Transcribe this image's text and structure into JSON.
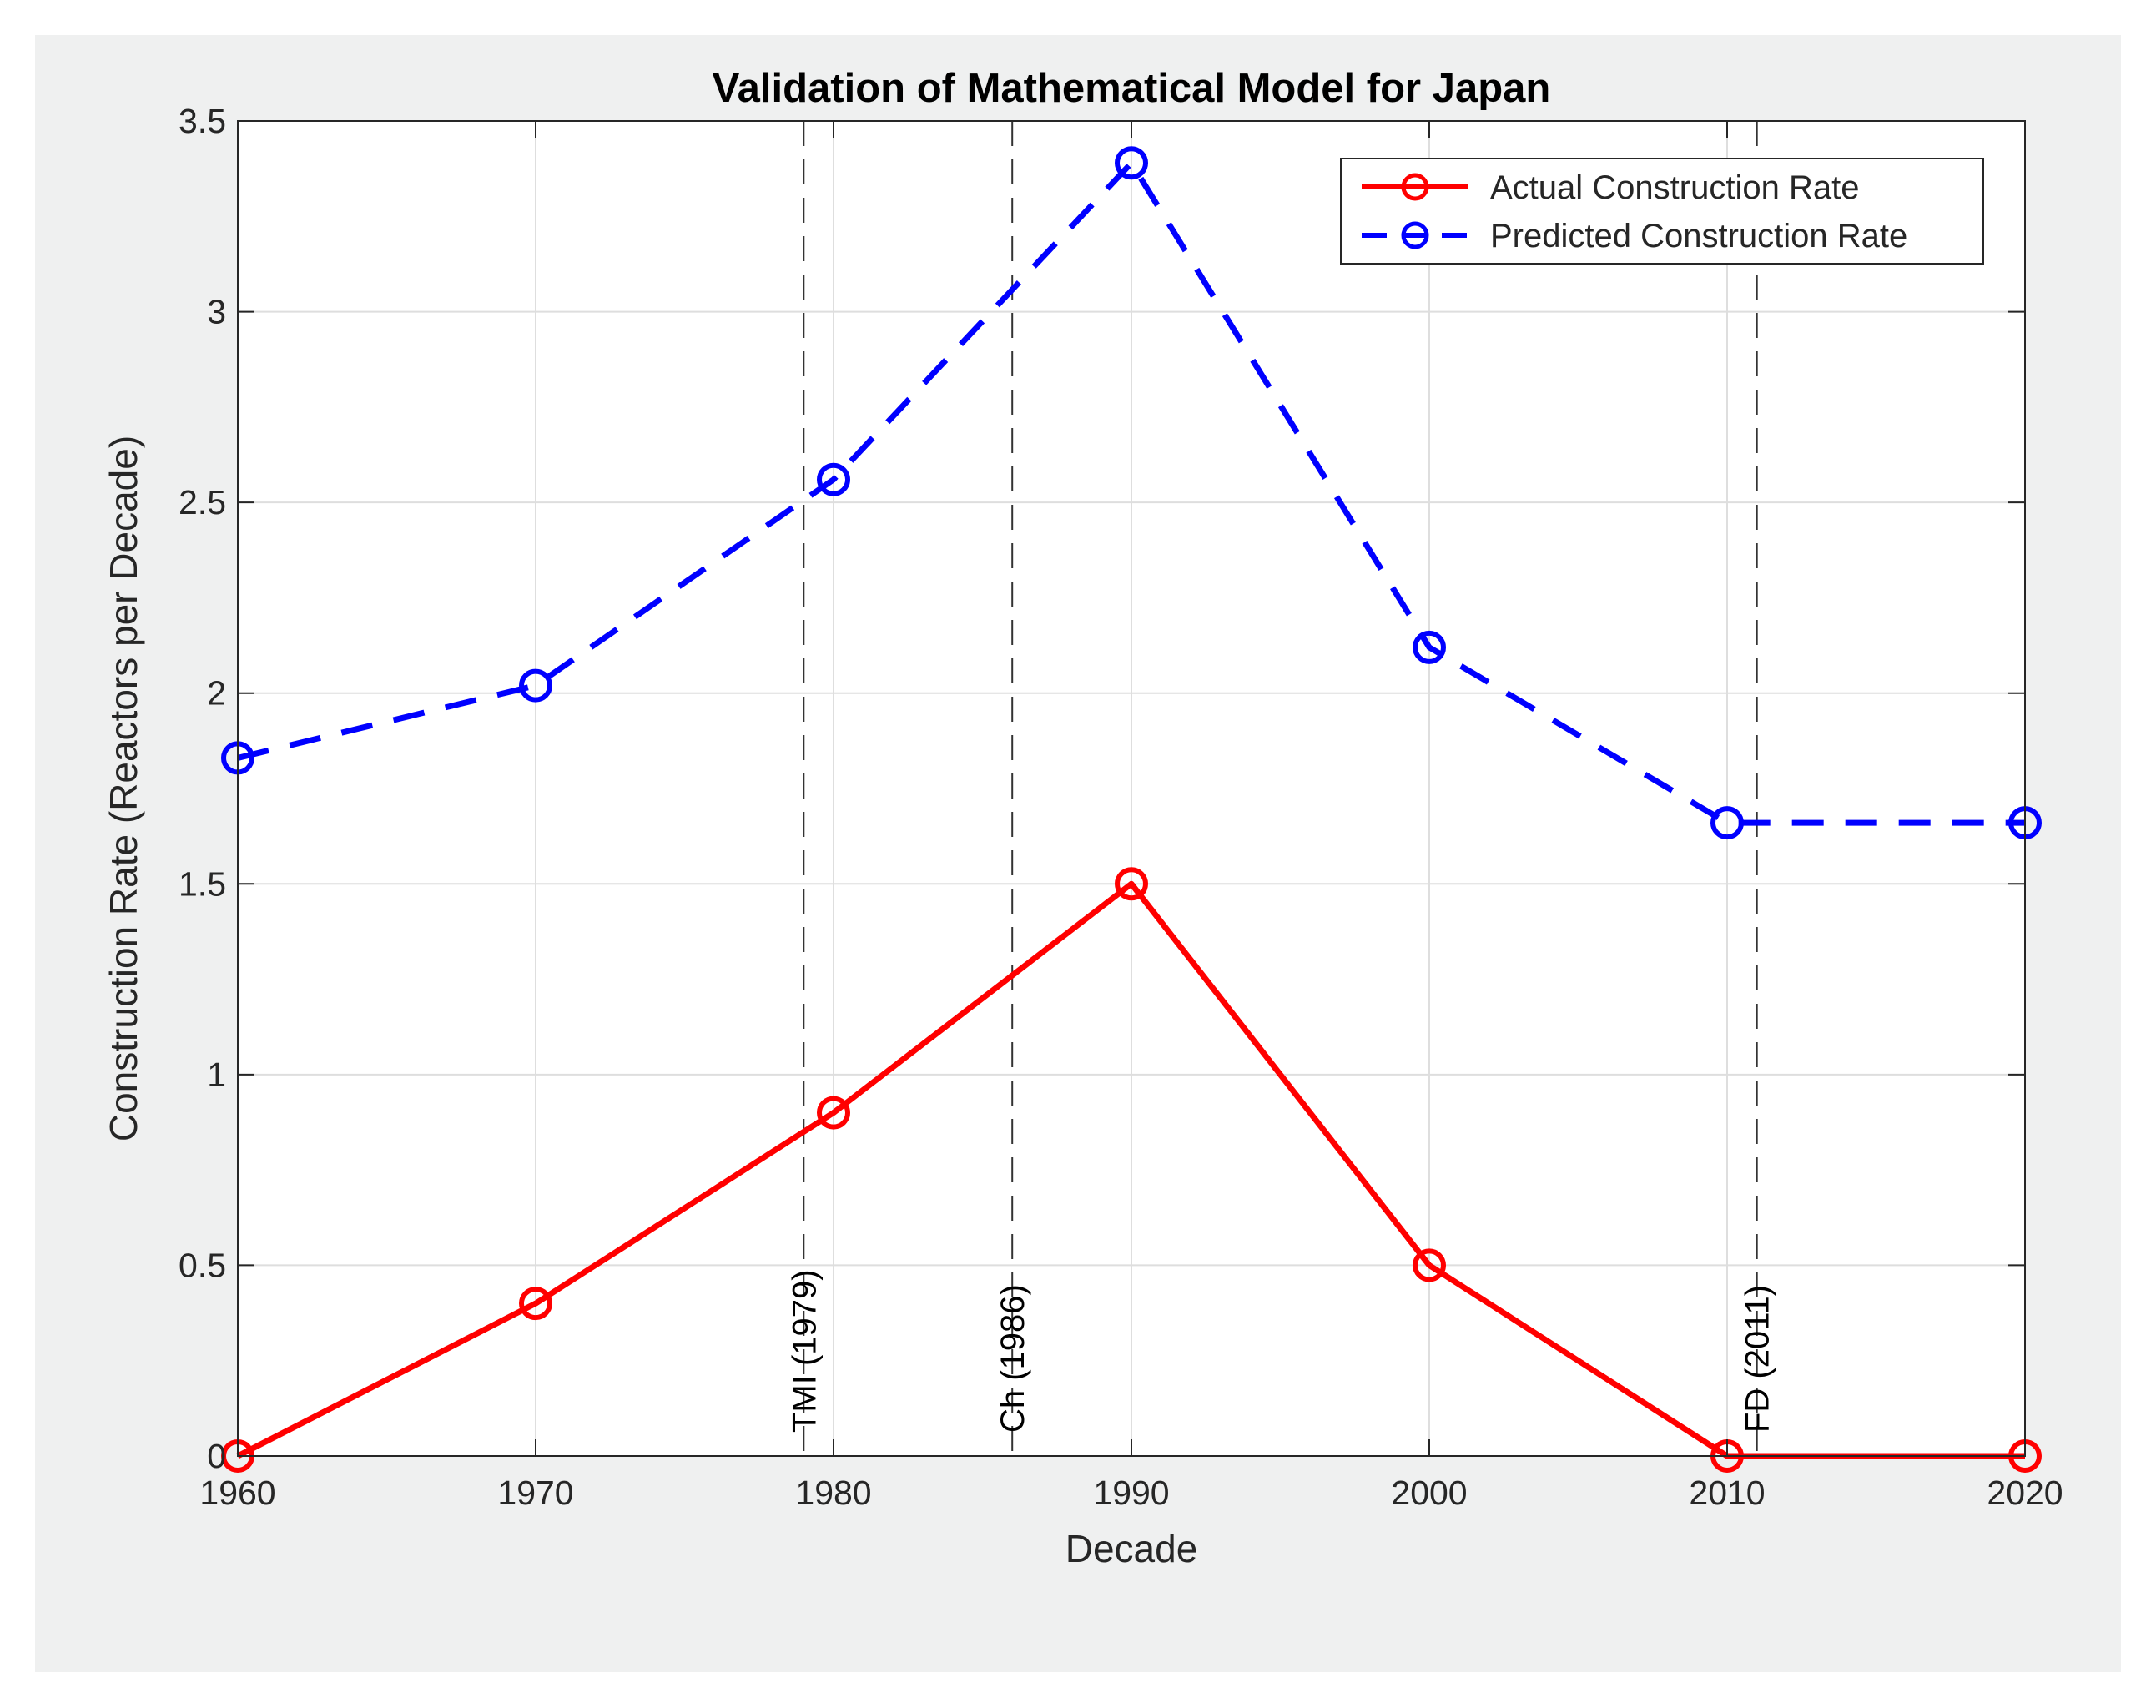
{
  "chart_data": {
    "type": "line",
    "title": "Validation of Mathematical Model for Japan",
    "xlabel": "Decade",
    "ylabel": "Construction Rate (Reactors per Decade)",
    "x": [
      1960,
      1970,
      1980,
      1990,
      2000,
      2010,
      2020
    ],
    "xlim": [
      1960,
      2020
    ],
    "ylim": [
      0,
      3.5
    ],
    "xticks": [
      "1960",
      "1970",
      "1980",
      "1990",
      "2000",
      "2010",
      "2020"
    ],
    "yticks": [
      "0",
      "0.5",
      "1",
      "1.5",
      "2",
      "2.5",
      "3",
      "3.5"
    ],
    "grid": true,
    "legend_position": "top-right",
    "series": [
      {
        "name": "Actual Construction Rate",
        "values": [
          0,
          0.4,
          0.9,
          1.5,
          0.5,
          0,
          0
        ],
        "color": "#ff0000",
        "style": "solid",
        "marker": "circle"
      },
      {
        "name": "Predicted Construction Rate",
        "values": [
          1.83,
          2.02,
          2.56,
          3.39,
          2.12,
          1.66,
          1.66
        ],
        "color": "#0000ff",
        "style": "dashed",
        "marker": "circle"
      }
    ],
    "events": [
      {
        "label": "TMI (1979)",
        "x": 1979
      },
      {
        "label": "Ch (1986)",
        "x": 1986
      },
      {
        "label": "FD (2011)",
        "x": 2011
      }
    ]
  }
}
